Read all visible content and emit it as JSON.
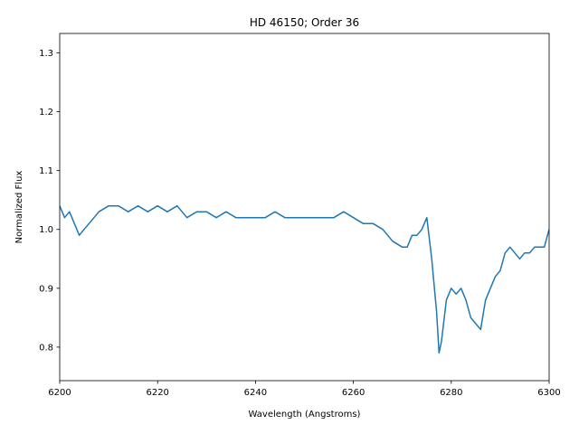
{
  "chart_data": {
    "type": "line",
    "title": "HD 46150; Order 36",
    "xlabel": "Wavelength (Angstroms)",
    "ylabel": "Normalized Flux",
    "xlim": [
      6200,
      6300
    ],
    "ylim": [
      0.743,
      1.333
    ],
    "xticks": [
      6200,
      6220,
      6240,
      6260,
      6280,
      6300
    ],
    "xtick_labels": [
      "6200",
      "6220",
      "6240",
      "6260",
      "6280",
      "6300"
    ],
    "yticks": [
      0.8,
      0.9,
      1.0,
      1.1,
      1.2,
      1.3
    ],
    "ytick_labels": [
      "0.8",
      "0.9",
      "1.0",
      "1.1",
      "1.2",
      "1.3"
    ],
    "grid": false,
    "legend": "none",
    "line_color": "#1f77b4",
    "series": [
      {
        "x": [
          6200,
          6201,
          6202,
          6203,
          6204,
          6205,
          6206,
          6207,
          6208,
          6210,
          6212,
          6214,
          6216,
          6218,
          6220,
          6222,
          6224,
          6226,
          6228,
          6230,
          6232,
          6234,
          6236,
          6238,
          6240,
          6242,
          6244,
          6246,
          6248,
          6250,
          6252,
          6254,
          6256,
          6258,
          6260,
          6262,
          6264,
          6266,
          6268,
          6270,
          6271,
          6272,
          6273,
          6274,
          6275,
          6276,
          6277,
          6277.5,
          6278,
          6279,
          6280,
          6281,
          6282,
          6283,
          6284,
          6285,
          6286,
          6287,
          6288,
          6289,
          6290,
          6291,
          6292,
          6293,
          6294,
          6295,
          6296,
          6297,
          6298,
          6299,
          6300
        ],
        "y": [
          1.04,
          1.02,
          1.03,
          1.01,
          0.99,
          1.0,
          1.01,
          1.02,
          1.03,
          1.04,
          1.04,
          1.03,
          1.04,
          1.03,
          1.04,
          1.03,
          1.04,
          1.02,
          1.03,
          1.03,
          1.02,
          1.03,
          1.02,
          1.02,
          1.02,
          1.02,
          1.03,
          1.02,
          1.02,
          1.02,
          1.02,
          1.02,
          1.02,
          1.03,
          1.02,
          1.01,
          1.01,
          1.0,
          0.98,
          0.97,
          0.97,
          0.99,
          0.99,
          1.0,
          1.02,
          0.95,
          0.86,
          0.79,
          0.81,
          0.88,
          0.9,
          0.89,
          0.9,
          0.88,
          0.85,
          0.84,
          0.83,
          0.88,
          0.9,
          0.92,
          0.93,
          0.96,
          0.97,
          0.96,
          0.95,
          0.96,
          0.96,
          0.97,
          0.97,
          0.97,
          1.0
        ]
      }
    ]
  }
}
